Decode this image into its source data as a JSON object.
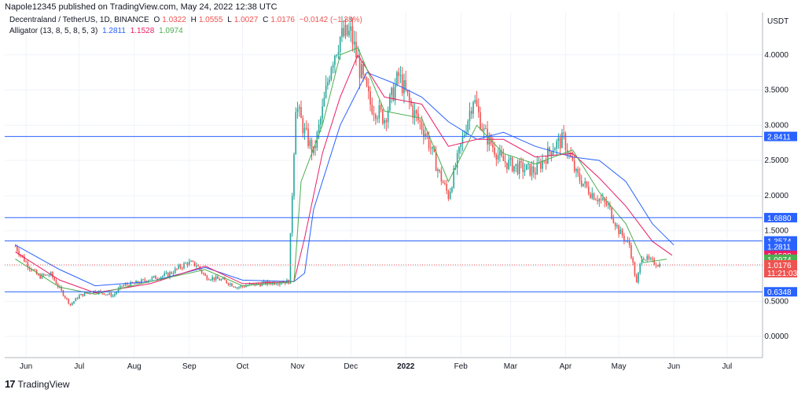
{
  "header": {
    "published_by": "Napole12345 published on TradingView.com, May 24, 2022 12:38 UTC"
  },
  "info": {
    "symbol_line": "Decentraland / TetherUS, 1D, BINANCE",
    "o_label": "O",
    "o_value": "1.0322",
    "h_label": "H",
    "h_value": "1.0555",
    "l_label": "L",
    "l_value": "1.0027",
    "c_label": "C",
    "c_value": "1.0176",
    "change": "−0.0142 (−1.38%)",
    "indicator_name": "Alligator (13, 8, 5, 8, 5, 3)",
    "jaw_value": "1.2811",
    "teeth_value": "1.1528",
    "lips_value": "1.0974"
  },
  "footer": {
    "brand": "TradingView"
  },
  "colors": {
    "up": "#26a69a",
    "down": "#ef5350",
    "jaw": "#2962ff",
    "teeth": "#e91e63",
    "lips": "#4caf50",
    "hline": "#2962ff",
    "price_line": "#ef5350",
    "grid": "#f0f3fa",
    "axis_border": "#b2b5be"
  },
  "chart_data": {
    "type": "candlestick",
    "title": "Decentraland / TetherUS, 1D, BINANCE",
    "currency": "USDT",
    "ylim": [
      -0.3,
      4.6
    ],
    "y_ticks": [
      "0.0000",
      "0.5000",
      "1.0000",
      "1.5000",
      "2.0000",
      "2.5000",
      "3.0000",
      "3.5000",
      "4.0000"
    ],
    "x_ticks": [
      "Jun",
      "Jul",
      "Aug",
      "Sep",
      "Oct",
      "Nov",
      "Dec",
      "2022",
      "Feb",
      "Mar",
      "Apr",
      "May",
      "Jun",
      "Jul"
    ],
    "grid": true,
    "ohlc_close_path": [
      [
        "2021-05-26",
        1.28
      ],
      [
        "2021-06-01",
        1.05
      ],
      [
        "2021-06-08",
        0.85
      ],
      [
        "2021-06-15",
        0.88
      ],
      [
        "2021-06-22",
        0.6
      ],
      [
        "2021-06-26",
        0.45
      ],
      [
        "2021-07-01",
        0.58
      ],
      [
        "2021-07-10",
        0.65
      ],
      [
        "2021-07-20",
        0.58
      ],
      [
        "2021-07-25",
        0.72
      ],
      [
        "2021-08-01",
        0.75
      ],
      [
        "2021-08-10",
        0.82
      ],
      [
        "2021-08-20",
        0.88
      ],
      [
        "2021-08-31",
        1.05
      ],
      [
        "2021-09-05",
        1.02
      ],
      [
        "2021-09-10",
        0.85
      ],
      [
        "2021-09-20",
        0.8
      ],
      [
        "2021-09-28",
        0.7
      ],
      [
        "2021-10-05",
        0.73
      ],
      [
        "2021-10-15",
        0.76
      ],
      [
        "2021-10-27",
        0.78
      ],
      [
        "2021-10-31",
        3.3
      ],
      [
        "2021-11-05",
        2.9
      ],
      [
        "2021-11-10",
        2.6
      ],
      [
        "2021-11-15",
        3.2
      ],
      [
        "2021-11-20",
        3.9
      ],
      [
        "2021-11-25",
        4.25
      ],
      [
        "2021-12-01",
        4.3
      ],
      [
        "2021-12-06",
        3.8
      ],
      [
        "2021-12-12",
        3.3
      ],
      [
        "2021-12-20",
        3.1
      ],
      [
        "2021-12-28",
        3.7
      ],
      [
        "2022-01-05",
        3.2
      ],
      [
        "2022-01-12",
        2.9
      ],
      [
        "2022-01-20",
        2.3
      ],
      [
        "2022-01-25",
        2.0
      ],
      [
        "2022-02-01",
        2.7
      ],
      [
        "2022-02-08",
        3.4
      ],
      [
        "2022-02-14",
        2.9
      ],
      [
        "2022-02-24",
        2.5
      ],
      [
        "2022-03-05",
        2.4
      ],
      [
        "2022-03-15",
        2.35
      ],
      [
        "2022-03-25",
        2.7
      ],
      [
        "2022-03-31",
        2.8
      ],
      [
        "2022-04-07",
        2.3
      ],
      [
        "2022-04-15",
        2.05
      ],
      [
        "2022-04-25",
        1.85
      ],
      [
        "2022-05-01",
        1.5
      ],
      [
        "2022-05-07",
        1.3
      ],
      [
        "2022-05-11",
        0.75
      ],
      [
        "2022-05-14",
        1.15
      ],
      [
        "2022-05-18",
        1.08
      ],
      [
        "2022-05-24",
        1.0176
      ]
    ],
    "series": [
      {
        "name": "Jaw",
        "values": [
          [
            "2021-05-26",
            1.3
          ],
          [
            "2021-06-20",
            0.95
          ],
          [
            "2021-07-10",
            0.72
          ],
          [
            "2021-08-10",
            0.78
          ],
          [
            "2021-09-10",
            0.98
          ],
          [
            "2021-10-01",
            0.8
          ],
          [
            "2021-10-30",
            0.78
          ],
          [
            "2021-11-05",
            0.9
          ],
          [
            "2021-11-10",
            1.8
          ],
          [
            "2021-11-25",
            3.0
          ],
          [
            "2021-12-10",
            3.75
          ],
          [
            "2021-12-25",
            3.6
          ],
          [
            "2022-01-10",
            3.4
          ],
          [
            "2022-01-25",
            3.05
          ],
          [
            "2022-02-10",
            2.8
          ],
          [
            "2022-02-25",
            2.9
          ],
          [
            "2022-03-15",
            2.7
          ],
          [
            "2022-04-05",
            2.55
          ],
          [
            "2022-04-20",
            2.5
          ],
          [
            "2022-05-05",
            2.2
          ],
          [
            "2022-05-20",
            1.6
          ],
          [
            "2022-06-01",
            1.3
          ]
        ]
      },
      {
        "name": "Teeth",
        "values": [
          [
            "2021-05-26",
            1.2
          ],
          [
            "2021-06-20",
            0.8
          ],
          [
            "2021-07-10",
            0.62
          ],
          [
            "2021-08-10",
            0.75
          ],
          [
            "2021-09-10",
            1.0
          ],
          [
            "2021-10-01",
            0.75
          ],
          [
            "2021-10-30",
            0.78
          ],
          [
            "2021-11-05",
            1.4
          ],
          [
            "2021-11-15",
            2.6
          ],
          [
            "2021-11-25",
            3.4
          ],
          [
            "2021-12-05",
            4.0
          ],
          [
            "2021-12-20",
            3.4
          ],
          [
            "2022-01-10",
            3.3
          ],
          [
            "2022-01-25",
            2.7
          ],
          [
            "2022-02-10",
            2.8
          ],
          [
            "2022-02-25",
            2.8
          ],
          [
            "2022-03-15",
            2.55
          ],
          [
            "2022-04-05",
            2.6
          ],
          [
            "2022-04-20",
            2.25
          ],
          [
            "2022-05-05",
            1.85
          ],
          [
            "2022-05-20",
            1.35
          ],
          [
            "2022-05-31",
            1.1528
          ]
        ]
      },
      {
        "name": "Lips",
        "values": [
          [
            "2021-05-26",
            1.1
          ],
          [
            "2021-06-20",
            0.7
          ],
          [
            "2021-07-10",
            0.6
          ],
          [
            "2021-08-10",
            0.78
          ],
          [
            "2021-09-10",
            0.95
          ],
          [
            "2021-10-01",
            0.72
          ],
          [
            "2021-10-30",
            0.78
          ],
          [
            "2021-11-03",
            2.2
          ],
          [
            "2021-11-15",
            3.0
          ],
          [
            "2021-11-25",
            4.0
          ],
          [
            "2021-12-05",
            4.1
          ],
          [
            "2021-12-20",
            3.2
          ],
          [
            "2022-01-10",
            3.1
          ],
          [
            "2022-01-25",
            2.2
          ],
          [
            "2022-02-10",
            3.0
          ],
          [
            "2022-02-25",
            2.6
          ],
          [
            "2022-03-15",
            2.45
          ],
          [
            "2022-04-05",
            2.65
          ],
          [
            "2022-04-20",
            2.05
          ],
          [
            "2022-05-05",
            1.6
          ],
          [
            "2022-05-15",
            1.05
          ],
          [
            "2022-05-28",
            1.0974
          ]
        ]
      }
    ],
    "horizontal_lines": [
      2.8411,
      1.688,
      1.3574,
      0.6348
    ],
    "current_price": 1.0176
  },
  "price_tags": [
    {
      "label": "2.8411",
      "value": 2.8411,
      "bg": "#2962ff"
    },
    {
      "label": "1.6880",
      "value": 1.688,
      "bg": "#2962ff"
    },
    {
      "label": "1.3574",
      "value": 1.3574,
      "bg": "#2962ff"
    },
    {
      "label": "1.2811",
      "value": 1.2811,
      "bg": "#2962ff"
    },
    {
      "label": "1.1528",
      "value": 1.1528,
      "bg": "#e91e63"
    },
    {
      "label": "1.0974",
      "value": 1.0974,
      "bg": "#4caf50"
    },
    {
      "label": "1.0176",
      "value": 1.0176,
      "bg": "#ef5350"
    },
    {
      "label": "0.6348",
      "value": 0.6348,
      "bg": "#2962ff"
    }
  ],
  "countdown": "11:21:03"
}
